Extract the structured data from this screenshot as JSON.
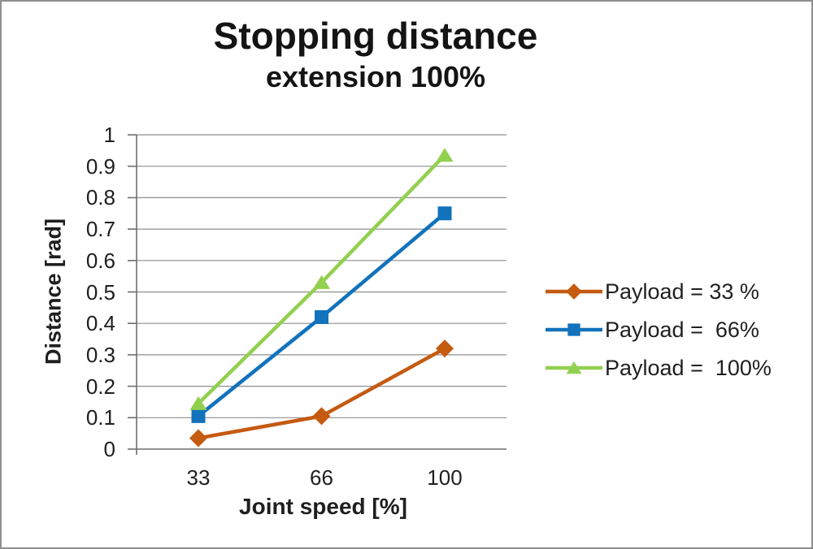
{
  "frame": {
    "background": "#ffffff",
    "border_color": "#8f8f8f"
  },
  "chart_data": {
    "type": "line",
    "title": "Stopping distance",
    "subtitle": "extension 100%",
    "xlabel": "Joint speed [%]",
    "ylabel": "Distance [rad]",
    "categories": [
      33,
      66,
      100
    ],
    "x_tick_labels": [
      "33",
      "66",
      "100"
    ],
    "ylim": [
      0,
      1
    ],
    "ytick_step": 0.1,
    "ytick_labels": [
      "0",
      "0.1",
      "0.2",
      "0.3",
      "0.4",
      "0.5",
      "0.6",
      "0.7",
      "0.8",
      "0.9",
      "1"
    ],
    "grid": "horizontal",
    "legend_position": "right",
    "series": [
      {
        "name": "Payload = 33 %",
        "marker": "diamond",
        "color": "#C55A11",
        "values": [
          0.035,
          0.105,
          0.32
        ]
      },
      {
        "name": "Payload =  66%",
        "marker": "square",
        "color": "#1272BC",
        "values": [
          0.105,
          0.42,
          0.75
        ]
      },
      {
        "name": "Payload =  100%",
        "marker": "triangle",
        "color": "#92D050",
        "values": [
          0.145,
          0.53,
          0.935
        ]
      }
    ],
    "colors": {
      "gridline": "#8f8f8f",
      "axis": "#6e6e6e",
      "text": "#1f1f1f"
    }
  }
}
